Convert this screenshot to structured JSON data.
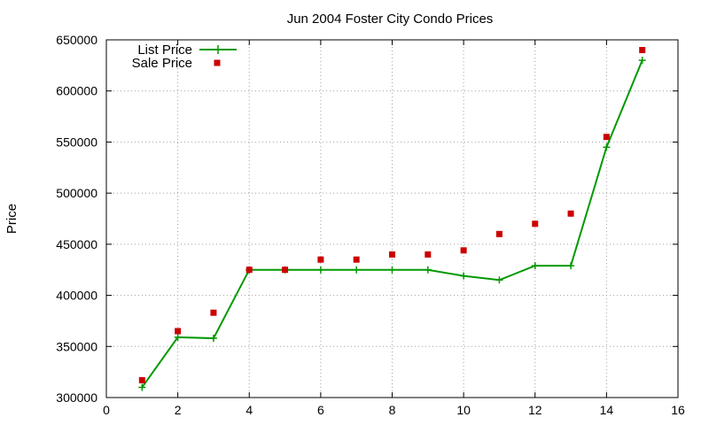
{
  "chart_data": {
    "type": "line",
    "title": "Jun 2004 Foster City Condo Prices",
    "xlabel": "",
    "ylabel": "Price",
    "xlim": [
      0,
      16
    ],
    "ylim": [
      300000,
      650000
    ],
    "xticks": [
      0,
      2,
      4,
      6,
      8,
      10,
      12,
      14,
      16
    ],
    "yticks": [
      300000,
      350000,
      400000,
      450000,
      500000,
      550000,
      600000,
      650000
    ],
    "grid": true,
    "legend_position": "top-left",
    "series": [
      {
        "name": "List Price",
        "style": "linespoints",
        "marker": "plus",
        "color": "#009900",
        "x": [
          1,
          2,
          3,
          4,
          5,
          6,
          7,
          8,
          9,
          10,
          11,
          12,
          13,
          14,
          15
        ],
        "y": [
          310000,
          359000,
          358000,
          425000,
          425000,
          425000,
          425000,
          425000,
          425000,
          419000,
          415000,
          429000,
          429000,
          545000,
          630000
        ]
      },
      {
        "name": "Sale Price",
        "style": "points",
        "marker": "square",
        "color": "#cc0000",
        "x": [
          1,
          2,
          3,
          4,
          5,
          6,
          7,
          8,
          9,
          10,
          11,
          12,
          13,
          14,
          15
        ],
        "y": [
          317000,
          365000,
          383000,
          425000,
          425000,
          435000,
          435000,
          440000,
          440000,
          444000,
          460000,
          470000,
          480000,
          555000,
          640000
        ]
      }
    ]
  }
}
